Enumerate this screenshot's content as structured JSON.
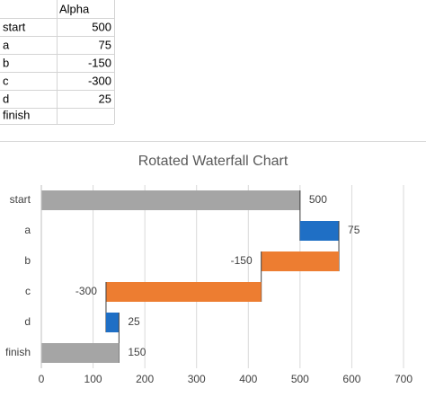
{
  "table": {
    "column_header": "Alpha",
    "row_labels": [
      "start",
      "a",
      "b",
      "c",
      "d",
      "finish"
    ],
    "values": [
      500,
      75,
      -150,
      -300,
      25,
      null
    ]
  },
  "chart_data": {
    "type": "waterfall",
    "title": "Rotated Waterfall Chart",
    "categories": [
      "start",
      "a",
      "b",
      "c",
      "d",
      "finish"
    ],
    "values": [
      500,
      75,
      -150,
      -300,
      25,
      150
    ],
    "colors": [
      "#a5a5a5",
      "#1f6fc5",
      "#ed7d31",
      "#ed7d31",
      "#1f6fc5",
      "#a5a5a5"
    ],
    "xlim": [
      0,
      700
    ],
    "xticks": [
      0,
      100,
      200,
      300,
      400,
      500,
      600,
      700
    ],
    "grid": true
  }
}
